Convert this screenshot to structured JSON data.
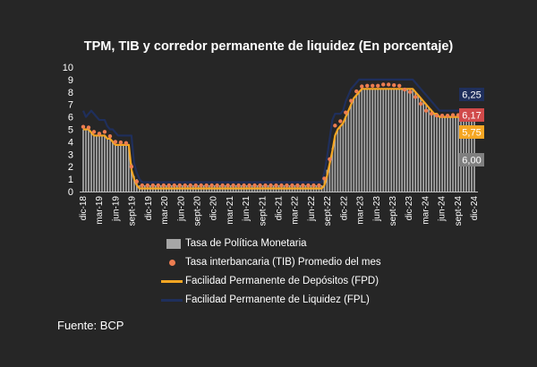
{
  "chart_data": {
    "type": "bar",
    "title": "TPM, TIB y corredor permanente de liquidez (En porcentaje)",
    "ylim": [
      0,
      10
    ],
    "yticks": [
      "0",
      "1",
      "2",
      "3",
      "4",
      "5",
      "6",
      "7",
      "8",
      "9",
      "10"
    ],
    "xtick_labels": [
      "dic-18",
      "mar-19",
      "jun-19",
      "sept-19",
      "dic-19",
      "mar-20",
      "jun-20",
      "sept-20",
      "dic-20",
      "mar-21",
      "jun-21",
      "sept-21",
      "dic-21",
      "mar-22",
      "jun-22",
      "sept-22",
      "dic-22",
      "mar-23",
      "jun-23",
      "sept-23",
      "dic-23",
      "mar-24",
      "jun-24",
      "sept-24",
      "dic-24"
    ],
    "grid": false,
    "legend_position": "bottom",
    "series": [
      {
        "name": "Tasa de Política Monetaria",
        "type": "bar",
        "color": "#a6a6a6",
        "values": [
          5.0,
          5.0,
          5.0,
          4.75,
          4.5,
          4.5,
          4.5,
          4.5,
          4.5,
          4.25,
          4.25,
          4.0,
          3.75,
          3.75,
          3.75,
          3.75,
          3.75,
          3.75,
          2.25,
          1.25,
          1.0,
          0.5,
          0.5,
          0.5,
          0.5,
          0.5,
          0.5,
          0.5,
          0.5,
          0.5,
          0.5,
          0.5,
          0.5,
          0.5,
          0.5,
          0.5,
          0.5,
          0.5,
          0.5,
          0.5,
          0.5,
          0.5,
          0.5,
          0.5,
          0.5,
          0.5,
          0.5,
          0.5,
          0.5,
          0.5,
          0.5,
          0.5,
          0.5,
          0.5,
          0.5,
          0.5,
          0.5,
          0.5,
          0.5,
          0.5,
          0.5,
          0.5,
          0.5,
          0.5,
          0.5,
          0.5,
          0.5,
          0.5,
          0.5,
          0.5,
          0.5,
          0.5,
          0.5,
          0.5,
          0.5,
          0.5,
          0.5,
          0.5,
          0.5,
          0.5,
          0.5,
          0.5,
          0.5,
          0.5,
          0.5,
          0.5,
          0.5,
          0.5,
          0.5,
          0.5,
          1.0,
          1.75,
          2.5,
          3.5,
          4.5,
          5.0,
          5.25,
          5.5,
          6.0,
          6.5,
          7.0,
          7.5,
          7.75,
          8.0,
          8.25,
          8.25,
          8.25,
          8.25,
          8.25,
          8.25,
          8.25,
          8.25,
          8.25,
          8.25,
          8.25,
          8.25,
          8.25,
          8.25,
          8.25,
          8.25,
          8.25,
          8.25,
          8.25,
          8.25,
          8.0,
          7.75,
          7.5,
          7.25,
          7.0,
          6.75,
          6.5,
          6.25,
          6.25,
          6.0,
          6.0,
          6.0,
          6.0,
          6.0,
          6.0,
          6.0,
          6.0,
          6.0,
          6.0,
          6.0,
          6.0,
          6.0,
          6.0
        ]
      },
      {
        "name": "Tasa interbancaria (TIB) Promedio del mes",
        "type": "scatter",
        "color": "#ed7d51",
        "values": [
          5.2,
          5.2,
          5.15,
          5.0,
          4.8,
          4.6,
          4.65,
          4.9,
          4.8,
          4.65,
          4.45,
          4.2,
          4.0,
          3.95,
          3.95,
          3.9,
          3.9,
          3.85,
          2.0,
          1.0,
          0.8,
          0.5,
          0.5,
          0.5,
          0.5,
          0.5,
          0.5,
          0.5,
          0.5,
          0.5,
          0.5,
          0.5,
          0.5,
          0.5,
          0.5,
          0.5,
          0.5,
          0.5,
          0.5,
          0.5,
          0.5,
          0.5,
          0.5,
          0.5,
          0.5,
          0.5,
          0.5,
          0.5,
          0.5,
          0.5,
          0.5,
          0.5,
          0.5,
          0.5,
          0.5,
          0.5,
          0.5,
          0.5,
          0.5,
          0.5,
          0.5,
          0.5,
          0.5,
          0.5,
          0.5,
          0.5,
          0.5,
          0.5,
          0.5,
          0.5,
          0.5,
          0.5,
          0.5,
          0.5,
          0.5,
          0.5,
          0.5,
          0.5,
          0.5,
          0.5,
          0.5,
          0.5,
          0.5,
          0.5,
          0.5,
          0.5,
          0.5,
          0.5,
          0.5,
          0.5,
          1.05,
          1.8,
          2.6,
          3.9,
          5.3,
          5.6,
          5.65,
          5.9,
          6.35,
          6.85,
          7.3,
          7.75,
          8.05,
          8.3,
          8.45,
          8.5,
          8.5,
          8.5,
          8.5,
          8.5,
          8.5,
          8.55,
          8.6,
          8.6,
          8.6,
          8.6,
          8.55,
          8.5,
          8.5,
          8.3,
          8.2,
          8.1,
          8.0,
          7.8,
          7.6,
          7.3,
          7.05,
          6.8,
          6.5,
          6.3,
          6.25,
          6.15,
          6.1,
          6.1,
          6.1,
          6.1,
          6.1,
          6.1,
          6.15,
          6.15,
          6.15,
          6.15,
          6.15,
          6.15,
          6.17
        ]
      },
      {
        "name": "Facilidad Permanente de Depósitos (FPD)",
        "type": "line",
        "color": "#f5a623",
        "values": [
          5.0,
          5.0,
          5.0,
          4.75,
          4.5,
          4.5,
          4.5,
          4.5,
          4.5,
          4.25,
          4.25,
          4.0,
          3.75,
          3.75,
          3.75,
          3.75,
          3.75,
          3.75,
          1.75,
          1.0,
          0.5,
          0.25,
          0.25,
          0.25,
          0.25,
          0.25,
          0.25,
          0.25,
          0.25,
          0.25,
          0.25,
          0.25,
          0.25,
          0.25,
          0.25,
          0.25,
          0.25,
          0.25,
          0.25,
          0.25,
          0.25,
          0.25,
          0.25,
          0.25,
          0.25,
          0.25,
          0.25,
          0.25,
          0.25,
          0.25,
          0.25,
          0.25,
          0.25,
          0.25,
          0.25,
          0.25,
          0.25,
          0.25,
          0.25,
          0.25,
          0.25,
          0.25,
          0.25,
          0.25,
          0.25,
          0.25,
          0.25,
          0.25,
          0.25,
          0.25,
          0.25,
          0.25,
          0.25,
          0.25,
          0.25,
          0.25,
          0.25,
          0.25,
          0.25,
          0.25,
          0.25,
          0.25,
          0.25,
          0.25,
          0.25,
          0.25,
          0.25,
          0.25,
          0.25,
          0.25,
          0.5,
          1.25,
          2.25,
          3.25,
          4.5,
          5.0,
          5.25,
          5.5,
          6.0,
          6.5,
          7.0,
          7.5,
          7.75,
          8.0,
          8.25,
          8.25,
          8.25,
          8.25,
          8.25,
          8.25,
          8.25,
          8.25,
          8.25,
          8.25,
          8.25,
          8.25,
          8.25,
          8.25,
          8.25,
          8.25,
          8.25,
          8.25,
          8.25,
          8.25,
          8.0,
          7.75,
          7.5,
          7.25,
          7.0,
          6.75,
          6.5,
          6.25,
          6.25,
          6.0,
          6.0,
          6.0,
          6.0,
          6.0,
          6.0,
          6.0,
          6.0,
          6.0,
          6.0,
          6.0,
          5.75,
          5.75,
          5.75
        ]
      },
      {
        "name": "Facilidad Permanente de Liquidez (FPL)",
        "type": "line",
        "color": "#1f2f5c",
        "values": [
          6.5,
          6.0,
          6.25,
          6.5,
          6.25,
          6.0,
          5.75,
          5.75,
          5.75,
          5.25,
          5.0,
          5.0,
          4.75,
          4.5,
          4.5,
          4.5,
          4.5,
          4.5,
          4.5,
          2.25,
          1.5,
          1.0,
          0.75,
          0.75,
          0.75,
          0.75,
          0.75,
          0.75,
          0.75,
          0.75,
          0.75,
          0.75,
          0.75,
          0.75,
          0.75,
          0.75,
          0.75,
          0.75,
          0.75,
          0.75,
          0.75,
          0.75,
          0.75,
          0.75,
          0.75,
          0.75,
          0.75,
          0.75,
          0.75,
          0.75,
          0.75,
          0.75,
          0.75,
          0.75,
          0.75,
          0.75,
          0.75,
          0.75,
          0.75,
          0.75,
          0.75,
          0.75,
          0.75,
          0.75,
          0.75,
          0.75,
          0.75,
          0.75,
          0.75,
          0.75,
          0.75,
          0.75,
          0.75,
          0.75,
          0.75,
          0.75,
          0.75,
          0.75,
          0.75,
          0.75,
          0.75,
          0.75,
          0.75,
          0.75,
          0.75,
          0.75,
          0.75,
          0.75,
          0.75,
          0.75,
          1.5,
          2.75,
          4.25,
          5.75,
          6.25,
          6.25,
          6.25,
          6.5,
          7.25,
          7.75,
          8.25,
          8.5,
          8.75,
          9.0,
          9.0,
          9.0,
          9.0,
          9.0,
          9.0,
          9.0,
          9.0,
          9.0,
          9.0,
          9.0,
          9.0,
          9.0,
          9.0,
          9.0,
          9.0,
          9.0,
          9.0,
          9.0,
          9.0,
          9.0,
          8.75,
          8.5,
          8.25,
          8.0,
          7.75,
          7.5,
          7.25,
          7.0,
          6.75,
          6.5,
          6.5,
          6.5,
          6.5,
          6.5,
          6.5,
          6.5,
          6.5,
          6.5,
          6.5,
          6.5,
          6.25,
          6.25,
          6.25
        ]
      }
    ],
    "annotations": [
      {
        "text": "6,25",
        "series": "Facilidad Permanente de Liquidez (FPL)",
        "bg": "#1f2f5c"
      },
      {
        "text": "6,17",
        "series": "Tasa interbancaria (TIB) Promedio del mes",
        "bg": "#d14a4a"
      },
      {
        "text": "5,75",
        "series": "Facilidad Permanente de Depósitos (FPD)",
        "bg": "#f5a623"
      },
      {
        "text": "6,00",
        "series": "Tasa de Política Monetaria",
        "bg": "#7f7f7f"
      }
    ]
  },
  "legend": {
    "items": [
      "Tasa de Política Monetaria",
      "Tasa interbancaria (TIB) Promedio del mes",
      "Facilidad Permanente de Depósitos (FPD)",
      "Facilidad Permanente de Liquidez (FPL)"
    ]
  },
  "source": "Fuente: BCP"
}
